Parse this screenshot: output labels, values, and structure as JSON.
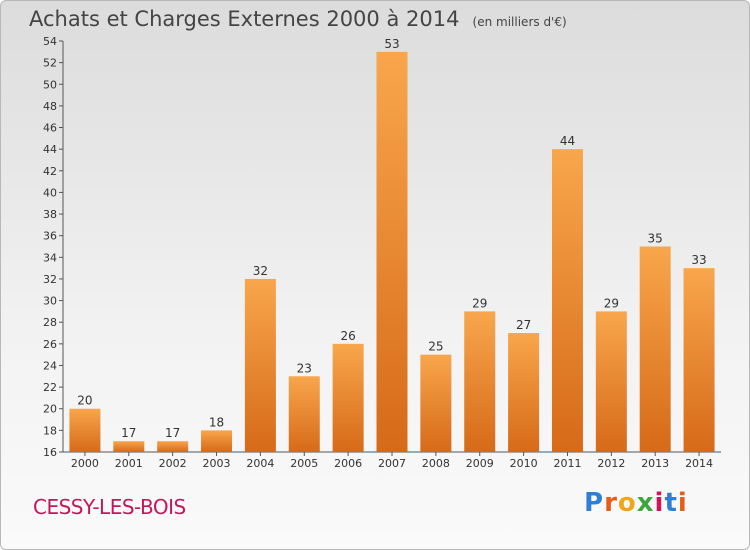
{
  "title": "Achats et Charges Externes 2000 à 2014",
  "subtitle": "(en milliers d'€)",
  "place": "CESSY-LES-BOIS",
  "brand": "Proxiti",
  "colors": {
    "bar_light": "#f8a64c",
    "bar_dark": "#d66a18",
    "axis": "#555555",
    "place": "#c2185b"
  },
  "chart_data": {
    "type": "bar",
    "categories": [
      "2000",
      "2001",
      "2002",
      "2003",
      "2004",
      "2005",
      "2006",
      "2007",
      "2008",
      "2009",
      "2010",
      "2011",
      "2012",
      "2013",
      "2014"
    ],
    "values": [
      20,
      17,
      17,
      18,
      32,
      23,
      26,
      53,
      25,
      29,
      27,
      44,
      29,
      35,
      33
    ],
    "title": "Achats et Charges Externes 2000 à 2014",
    "subtitle": "(en milliers d'€)",
    "xlabel": "",
    "ylabel": "",
    "ylim": [
      16,
      54
    ],
    "yticks": [
      16,
      18,
      20,
      22,
      24,
      26,
      28,
      30,
      32,
      34,
      36,
      38,
      40,
      42,
      44,
      46,
      48,
      50,
      52,
      54
    ],
    "grid": false,
    "legend": "none"
  }
}
